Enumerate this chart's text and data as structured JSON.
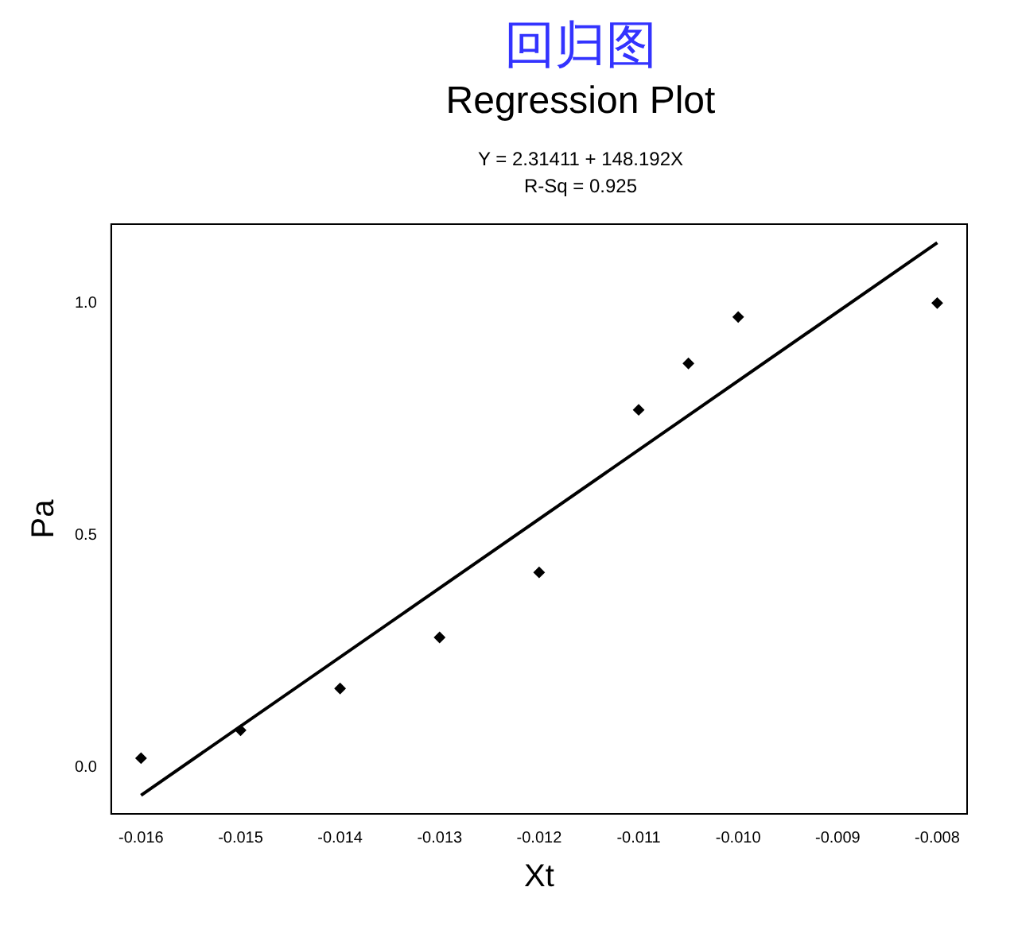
{
  "chart_data": {
    "type": "scatter",
    "title": "回归图",
    "subtitle": "Regression Plot",
    "annotations": [
      "Y = 2.31411 + 148.192X",
      "R-Sq = 0.925"
    ],
    "xlabel": "Xt",
    "ylabel": "Pa",
    "x": [
      -0.016,
      -0.015,
      -0.014,
      -0.013,
      -0.012,
      -0.011,
      -0.0105,
      -0.01,
      -0.008
    ],
    "series": [
      {
        "type": "scatter",
        "color": "#000000",
        "marker": "diamond",
        "values": [
          0.02,
          0.08,
          0.17,
          0.28,
          0.42,
          0.77,
          0.87,
          0.97,
          1.0
        ]
      },
      {
        "type": "line",
        "color": "#000000",
        "marker": "none",
        "x": [
          -0.016,
          -0.008
        ],
        "values": [
          -0.06,
          1.13
        ]
      }
    ],
    "xlim": [
      -0.0163,
      -0.0077
    ],
    "ylim": [
      -0.1,
      1.17
    ],
    "xticks": [
      -0.016,
      -0.015,
      -0.014,
      -0.013,
      -0.012,
      -0.011,
      {
        "value": -0.01,
        "label": "-0.010"
      },
      -0.009,
      -0.008
    ],
    "yticks": [
      {
        "value": 0,
        "label": "0.0"
      },
      {
        "value": 0.5,
        "label": "0.5"
      },
      {
        "value": 1,
        "label": "1.0"
      }
    ],
    "grid": false,
    "legend": false
  }
}
